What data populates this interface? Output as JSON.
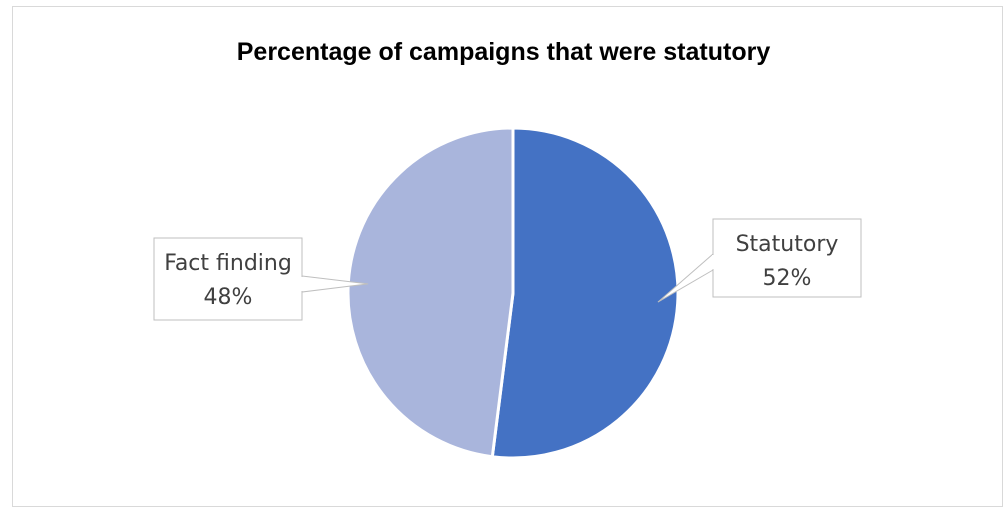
{
  "chart_data": {
    "type": "pie",
    "title": "Percentage of campaigns that were statutory",
    "slices": [
      {
        "label": "Statutory",
        "value": 52,
        "value_label": "52%",
        "color": "#4472c4"
      },
      {
        "label": "Fact finding",
        "value": 48,
        "value_label": "48%",
        "color": "#a9b5dc"
      }
    ],
    "start": "12 o'clock",
    "direction": "clockwise",
    "legend": "none",
    "data_labels": "callouts"
  }
}
